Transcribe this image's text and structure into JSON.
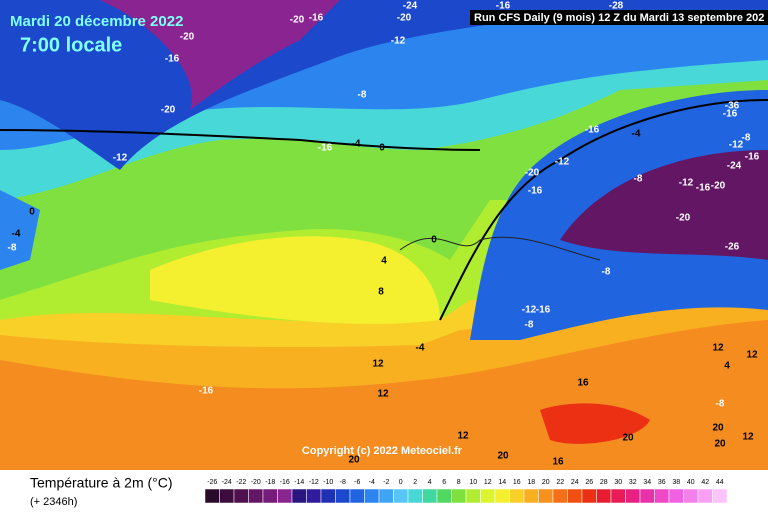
{
  "header": {
    "date": "Mardi 20 décembre 2022",
    "time": "7:00 locale",
    "run": "Run CFS Daily (9 mois) 12 Z du Mardi 13 septembre 202"
  },
  "map": {
    "copyright": "Copyright (c) 2022 Meteociel.fr",
    "contour_labels": [
      -20,
      -16,
      -20,
      -16,
      -24,
      -20,
      -12,
      -8,
      -20,
      -12,
      -16,
      -4,
      0,
      -4,
      -8,
      0,
      -16,
      -28,
      -16,
      -4,
      -12,
      -20,
      -16,
      -8,
      -12,
      -16,
      -20,
      -26,
      -8,
      -36,
      -16,
      -8,
      -12,
      -16,
      -24,
      -20,
      0,
      4,
      8,
      -12,
      -16,
      -8,
      -4,
      12,
      12,
      -16,
      12,
      4,
      16,
      -8,
      20,
      12,
      20,
      20,
      12,
      20,
      20,
      16,
      12
    ]
  },
  "footer": {
    "title": "Température à 2m (°C)",
    "lead": "(+ 2346h)"
  },
  "legend": {
    "values": [
      -26,
      -24,
      -22,
      -20,
      -18,
      -16,
      -14,
      -12,
      -10,
      -8,
      -6,
      -4,
      -2,
      0,
      2,
      4,
      6,
      8,
      10,
      12,
      14,
      16,
      18,
      20,
      22,
      24,
      26,
      28,
      30,
      32,
      34,
      36,
      38,
      40,
      42,
      44
    ],
    "colors": [
      "#2a0a2a",
      "#3c0c3c",
      "#4e104e",
      "#621664",
      "#761c7a",
      "#8a2490",
      "#2a1680",
      "#301c9a",
      "#2030b4",
      "#1c48cc",
      "#2064e0",
      "#2c84ee",
      "#40a4f4",
      "#58c4f8",
      "#48d8d8",
      "#40d8a0",
      "#50d860",
      "#80e040",
      "#b0ec30",
      "#dcf430",
      "#f4f030",
      "#f8d028",
      "#f8b020",
      "#f89020",
      "#f47018",
      "#f05010",
      "#ec3014",
      "#e81c30",
      "#e81c58",
      "#e82080",
      "#e830a8",
      "#ec48c8",
      "#f060e0",
      "#f480ec",
      "#f8a0f4",
      "#fcc4fc"
    ]
  }
}
